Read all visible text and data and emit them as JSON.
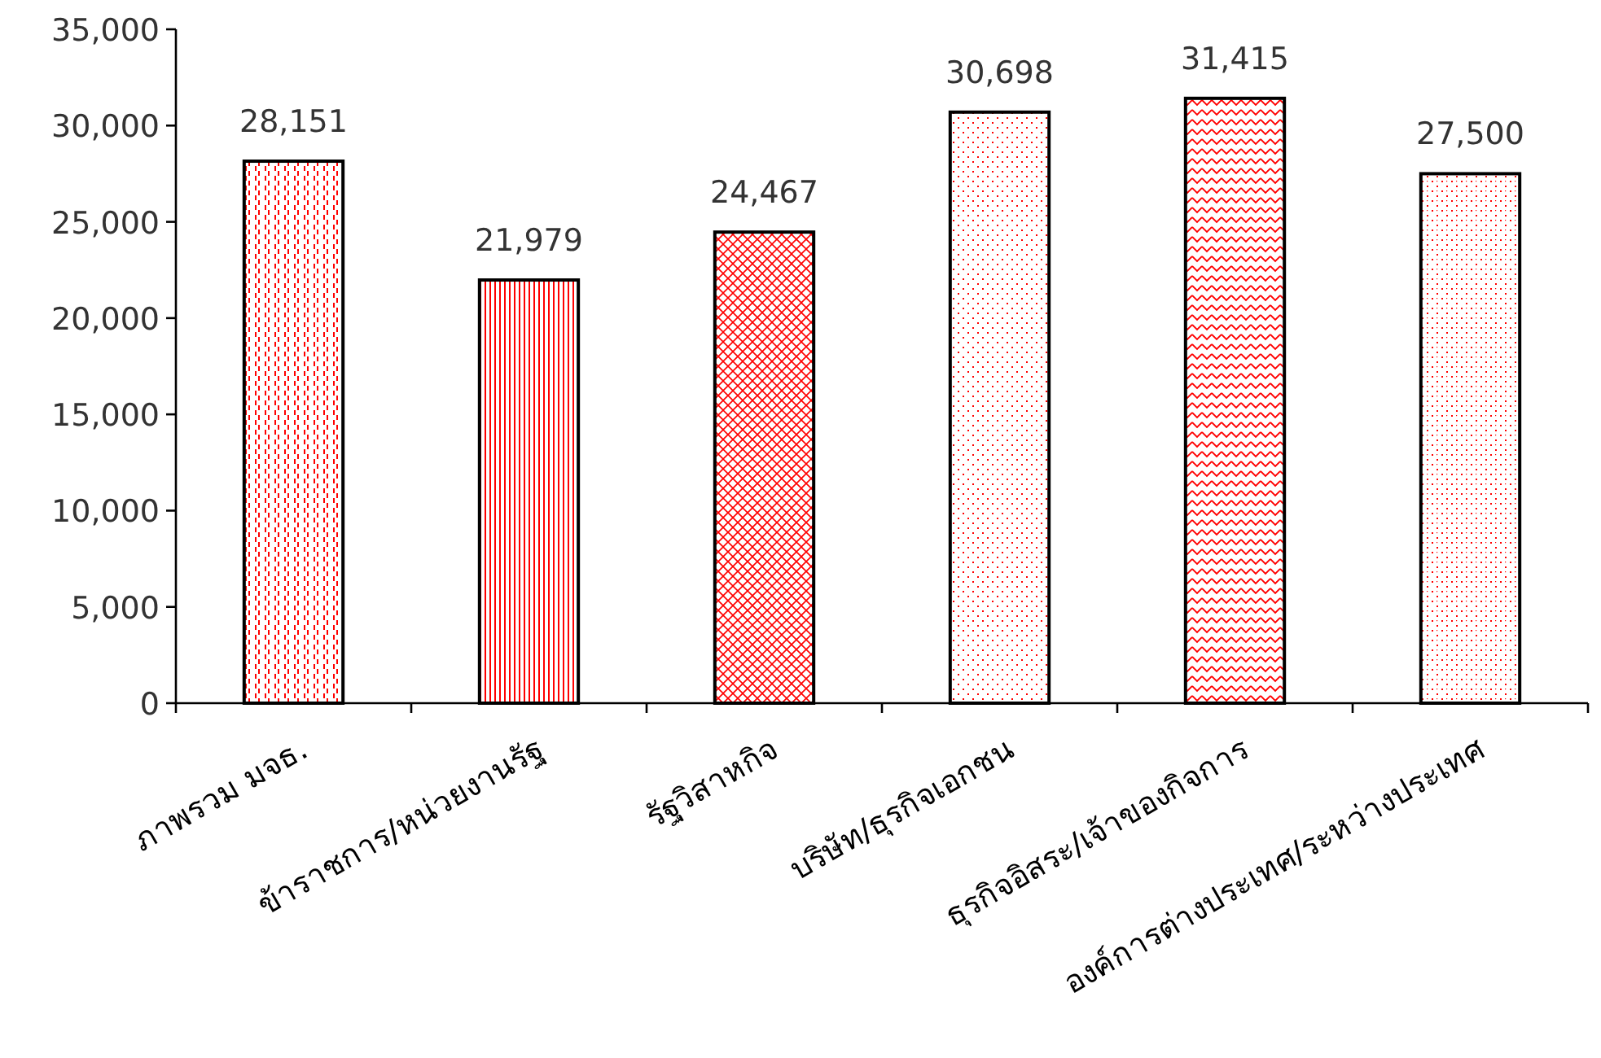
{
  "chart_data": {
    "type": "bar",
    "categories": [
      "ภาพรวม มจธ.",
      "ข้าราชการ/หน่วยงานรัฐ",
      "รัฐวิสาหกิจ",
      "บริษัท/ธุรกิจเอกชน",
      "ธุรกิจอิสระ/เจ้าของกิจการ",
      "องค์การต่างประเทศ/ระหว่างประเทศ"
    ],
    "values": [
      28151,
      21979,
      24467,
      30698,
      31415,
      27500
    ],
    "ylim": [
      0,
      35000
    ],
    "yticks": [
      {
        "value": 0,
        "label": "0"
      },
      {
        "value": 5000,
        "label": "5,000"
      },
      {
        "value": 10000,
        "label": "10,000"
      },
      {
        "value": 15000,
        "label": "15,000"
      },
      {
        "value": 20000,
        "label": "20,000"
      },
      {
        "value": 25000,
        "label": "25,000"
      },
      {
        "value": 30000,
        "label": "30,000"
      },
      {
        "value": 35000,
        "label": "35,000"
      }
    ],
    "value_labels": [
      "28,151",
      "21,979",
      "24,467",
      "30,698",
      "31,415",
      "27,500"
    ],
    "grid": false
  }
}
